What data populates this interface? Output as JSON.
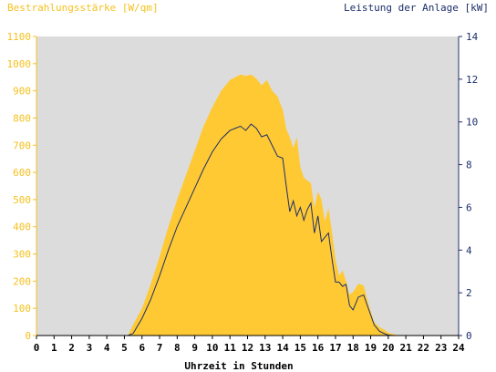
{
  "colors": {
    "plot_bg": "#dcdcdc",
    "irradiance_fill": "#ffc933",
    "power_line": "#1c2f6b",
    "left_axis": "#f5c11f",
    "right_axis": "#1c2f6b"
  },
  "chart_data": {
    "type": "area",
    "title_left": "Bestrahlungsstärke [W/qm]",
    "title_right": "Leistung der Anlage [kW]",
    "xlabel": "Uhrzeit in Stunden",
    "xlim": [
      0,
      24
    ],
    "ylim_left": [
      0,
      1100
    ],
    "ylim_right": [
      0,
      14
    ],
    "x_ticks": [
      "0",
      "1",
      "2",
      "3",
      "4",
      "5",
      "6",
      "7",
      "8",
      "9",
      "10",
      "11",
      "12",
      "13",
      "14",
      "15",
      "16",
      "17",
      "18",
      "19",
      "20",
      "21",
      "22",
      "23",
      "24"
    ],
    "y_left_ticks": [
      "0",
      "100",
      "200",
      "300",
      "400",
      "500",
      "600",
      "700",
      "800",
      "900",
      "1000",
      "1100"
    ],
    "y_right_ticks": [
      "0",
      "2",
      "4",
      "6",
      "8",
      "10",
      "12",
      "14"
    ],
    "series": [
      {
        "name": "Bestrahlungsstärke",
        "axis": "left",
        "x": [
          0,
          5.2,
          5.5,
          6.0,
          6.5,
          7.0,
          7.5,
          8.0,
          8.5,
          9.0,
          9.5,
          10.0,
          10.5,
          11.0,
          11.3,
          11.6,
          11.9,
          12.2,
          12.5,
          12.8,
          13.1,
          13.4,
          13.7,
          14.0,
          14.2,
          14.4,
          14.6,
          14.8,
          15.0,
          15.2,
          15.4,
          15.6,
          15.8,
          16.0,
          16.2,
          16.4,
          16.6,
          16.8,
          17.0,
          17.2,
          17.4,
          17.6,
          17.8,
          18.0,
          18.3,
          18.6,
          18.9,
          19.2,
          19.5,
          19.8,
          20.0,
          20.3,
          20.6,
          24
        ],
        "y": [
          0,
          0,
          40,
          100,
          190,
          290,
          400,
          500,
          590,
          680,
          770,
          840,
          900,
          940,
          950,
          960,
          955,
          960,
          945,
          920,
          940,
          900,
          880,
          830,
          760,
          730,
          690,
          730,
          620,
          580,
          570,
          560,
          470,
          530,
          500,
          420,
          470,
          380,
          280,
          220,
          240,
          200,
          150,
          160,
          190,
          185,
          110,
          50,
          30,
          20,
          10,
          5,
          0,
          0
        ]
      },
      {
        "name": "Leistung der Anlage",
        "axis": "right",
        "x": [
          0,
          5.2,
          5.5,
          6.0,
          6.5,
          7.0,
          7.5,
          8.0,
          8.5,
          9.0,
          9.5,
          10.0,
          10.5,
          11.0,
          11.3,
          11.6,
          11.9,
          12.2,
          12.5,
          12.8,
          13.1,
          13.4,
          13.7,
          14.0,
          14.2,
          14.4,
          14.6,
          14.8,
          15.0,
          15.2,
          15.4,
          15.6,
          15.8,
          16.0,
          16.2,
          16.4,
          16.6,
          16.8,
          17.0,
          17.2,
          17.4,
          17.6,
          17.8,
          18.0,
          18.3,
          18.6,
          18.9,
          19.2,
          19.5,
          19.8,
          20.0,
          20.3,
          20.6,
          24
        ],
        "y": [
          0,
          0,
          0.1,
          0.8,
          1.7,
          2.8,
          4.0,
          5.1,
          6.0,
          6.9,
          7.8,
          8.6,
          9.2,
          9.6,
          9.7,
          9.8,
          9.6,
          9.9,
          9.7,
          9.3,
          9.4,
          8.9,
          8.4,
          8.3,
          7.0,
          5.8,
          6.3,
          5.6,
          6.0,
          5.4,
          5.9,
          6.2,
          4.8,
          5.6,
          4.4,
          4.6,
          4.8,
          3.6,
          2.5,
          2.5,
          2.3,
          2.4,
          1.4,
          1.2,
          1.8,
          1.9,
          1.2,
          0.5,
          0.2,
          0.08,
          0.02,
          0,
          0,
          0
        ]
      }
    ],
    "grid": false,
    "legend": "none"
  }
}
